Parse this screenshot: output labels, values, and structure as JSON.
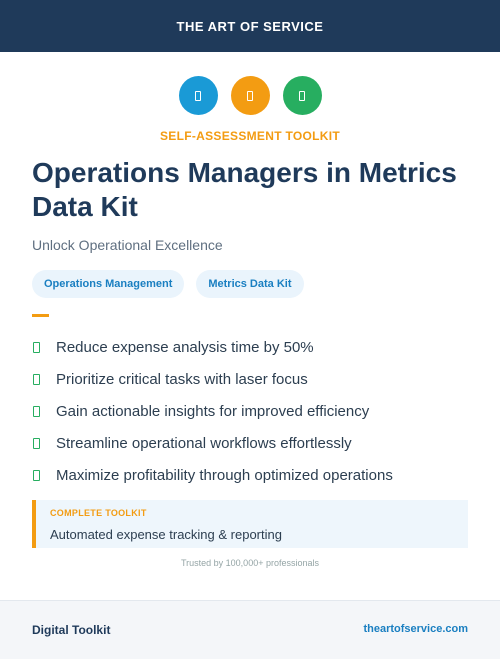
{
  "header": {
    "brand": "THE ART OF SERVICE"
  },
  "icons": [
    {
      "name": "blue-circle-icon",
      "color": "#1a9ad6"
    },
    {
      "name": "orange-circle-icon",
      "color": "#f39c12"
    },
    {
      "name": "green-circle-icon",
      "color": "#27ae60"
    }
  ],
  "kicker": "SELF-ASSESSMENT TOOLKIT",
  "title": "Operations Managers in Metrics Data Kit",
  "subtitle": "Unlock Operational Excellence",
  "tags": [
    "Operations Management",
    "Metrics Data Kit"
  ],
  "benefits": [
    "Reduce expense analysis time by 50%",
    "Prioritize critical tasks with laser focus",
    "Gain actionable insights for improved efficiency",
    "Streamline operational workflows effortlessly",
    "Maximize profitability through optimized operations"
  ],
  "callout": {
    "label": "COMPLETE TOOLKIT",
    "text": "Automated expense tracking & reporting"
  },
  "trust": "Trusted by 100,000+ professionals",
  "footer": {
    "left": "Digital Toolkit",
    "right": "theartofservice.com"
  },
  "colors": {
    "navy": "#1f3a5a",
    "accent_orange": "#f39c12",
    "accent_blue": "#1a7fc1",
    "check_green": "#27ae60"
  }
}
